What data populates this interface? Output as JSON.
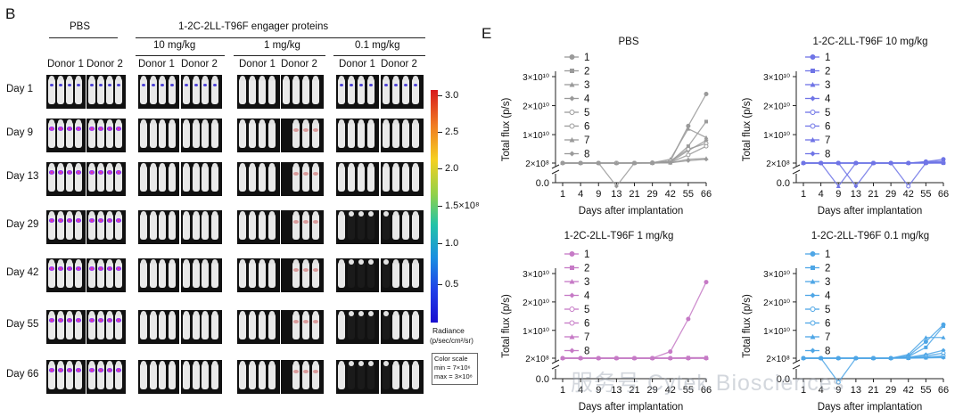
{
  "panel_b": {
    "letter": "B",
    "pbs_label": "PBS",
    "engager_label": "1-2C-2LL-T96F engager proteins",
    "dose_labels": [
      "10 mg/kg",
      "1 mg/kg",
      "0.1 mg/kg"
    ],
    "donor_labels": [
      "Donor 1",
      "Donor 2",
      "Donor 1",
      "Donor 2",
      "Donor 1",
      "Donor 2",
      "Donor 1",
      "Donor 2"
    ],
    "days": [
      "Day 1",
      "Day 9",
      "Day 13",
      "Day 29",
      "Day 42",
      "Day 55",
      "Day 66"
    ],
    "colorbar": {
      "ticks": [
        "3.0",
        "2.5",
        "2.0",
        "1.5×10⁸",
        "1.0",
        "0.5"
      ],
      "title_line1": "Radiance",
      "title_line2": "(p/sec/cm²/sr)",
      "scale_line1": "Color scale",
      "scale_line2": "min = 7×10⁶",
      "scale_line3": "max = 3×10⁸"
    }
  },
  "panel_e": {
    "letter": "E",
    "ylabel": "Total flux (p/s)",
    "xlabel": "Days after implantation",
    "x_ticks": [
      "1",
      "4",
      "9",
      "13",
      "21",
      "29",
      "42",
      "55",
      "66"
    ],
    "y_ticks": [
      "0.0",
      "2×10⁸",
      "1×10¹⁰",
      "2×10¹⁰",
      "3×10¹⁰"
    ],
    "legend": [
      "1",
      "2",
      "3",
      "4",
      "5",
      "6",
      "7",
      "8"
    ]
  },
  "chart_data": [
    {
      "type": "line",
      "title": "PBS",
      "color": "#9a9a9a",
      "xlabel": "Days after implantation",
      "ylabel": "Total flux (p/s)",
      "x": [
        1,
        4,
        9,
        13,
        21,
        29,
        42,
        55,
        66
      ],
      "ylim": [
        0,
        30000000000
      ],
      "series": [
        {
          "name": "1",
          "values": [
            200000000,
            200000000,
            200000000,
            200000000,
            200000000,
            300000000,
            800000000,
            13000000000,
            24000000000
          ]
        },
        {
          "name": "2",
          "values": [
            200000000,
            200000000,
            200000000,
            200000000,
            200000000,
            250000000,
            600000000,
            6000000000,
            14500000000
          ]
        },
        {
          "name": "3",
          "values": [
            200000000,
            200000000,
            200000000,
            200000000,
            250000000,
            300000000,
            1500000000,
            12000000000,
            9000000000
          ]
        },
        {
          "name": "4",
          "values": [
            200000000,
            200000000,
            200000000,
            200000000,
            200000000,
            200000000,
            500000000,
            4500000000,
            8000000000
          ]
        },
        {
          "name": "5",
          "values": [
            200000000,
            200000000,
            200000000,
            200000000,
            200000000,
            300000000,
            900000000,
            5000000000,
            7000000000
          ]
        },
        {
          "name": "6",
          "values": [
            200000000,
            200000000,
            200000000,
            200000000,
            200000000,
            200000000,
            400000000,
            3000000000,
            6000000000
          ]
        },
        {
          "name": "7",
          "values": [
            200000000,
            200000000,
            200000000,
            200000000,
            200000000,
            200000000,
            300000000,
            1500000000,
            1800000000
          ]
        },
        {
          "name": "8",
          "values": [
            200000000,
            200000000,
            200000000,
            100000000,
            200000000,
            200000000,
            300000000,
            1000000000,
            1500000000
          ]
        }
      ]
    },
    {
      "type": "line",
      "title": "1-2C-2LL-T96F 10 mg/kg",
      "color": "#6f74e6",
      "xlabel": "Days after implantation",
      "ylabel": "Total flux (p/s)",
      "x": [
        1,
        4,
        9,
        13,
        21,
        29,
        42,
        55,
        66
      ],
      "ylim": [
        0,
        30000000000
      ],
      "series": [
        {
          "name": "1",
          "values": [
            200000000,
            200000000,
            200000000,
            200000000,
            200000000,
            200000000,
            200000000,
            700000000,
            1500000000
          ]
        },
        {
          "name": "2",
          "values": [
            200000000,
            200000000,
            200000000,
            200000000,
            200000000,
            200000000,
            200000000,
            600000000,
            900000000
          ]
        },
        {
          "name": "3",
          "values": [
            200000000,
            200000000,
            100000000,
            200000000,
            200000000,
            200000000,
            200000000,
            400000000,
            600000000
          ]
        },
        {
          "name": "4",
          "values": [
            200000000,
            200000000,
            200000000,
            100000000,
            200000000,
            200000000,
            200000000,
            300000000,
            400000000
          ]
        },
        {
          "name": "5",
          "values": [
            200000000,
            200000000,
            200000000,
            200000000,
            200000000,
            200000000,
            100000000,
            200000000,
            300000000
          ]
        },
        {
          "name": "6",
          "values": [
            200000000,
            200000000,
            200000000,
            200000000,
            200000000,
            200000000,
            200000000,
            200000000,
            300000000
          ]
        },
        {
          "name": "7",
          "values": [
            200000000,
            200000000,
            200000000,
            200000000,
            200000000,
            200000000,
            200000000,
            200000000,
            200000000
          ]
        },
        {
          "name": "8",
          "values": [
            200000000,
            200000000,
            200000000,
            200000000,
            200000000,
            200000000,
            200000000,
            200000000,
            200000000
          ]
        }
      ]
    },
    {
      "type": "line",
      "title": "1-2C-2LL-T96F 1 mg/kg",
      "color": "#c67ac6",
      "xlabel": "Days after implantation",
      "ylabel": "Total flux (p/s)",
      "x": [
        1,
        4,
        9,
        13,
        21,
        29,
        42,
        55,
        66
      ],
      "ylim": [
        0,
        30000000000
      ],
      "series": [
        {
          "name": "1",
          "values": [
            200000000,
            200000000,
            200000000,
            200000000,
            200000000,
            200000000,
            2500000000,
            14000000000,
            27000000000
          ]
        },
        {
          "name": "2",
          "values": [
            200000000,
            200000000,
            200000000,
            200000000,
            200000000,
            200000000,
            200000000,
            400000000,
            400000000
          ]
        },
        {
          "name": "3",
          "values": [
            200000000,
            200000000,
            200000000,
            200000000,
            200000000,
            200000000,
            200000000,
            300000000,
            300000000
          ]
        },
        {
          "name": "4",
          "values": [
            200000000,
            200000000,
            200000000,
            200000000,
            200000000,
            200000000,
            200000000,
            200000000,
            300000000
          ]
        },
        {
          "name": "5",
          "values": [
            200000000,
            200000000,
            200000000,
            200000000,
            200000000,
            200000000,
            200000000,
            200000000,
            200000000
          ]
        },
        {
          "name": "6",
          "values": [
            200000000,
            200000000,
            200000000,
            200000000,
            200000000,
            200000000,
            200000000,
            200000000,
            200000000
          ]
        },
        {
          "name": "7",
          "values": [
            200000000,
            200000000,
            200000000,
            200000000,
            200000000,
            200000000,
            200000000,
            200000000,
            200000000
          ]
        },
        {
          "name": "8",
          "values": [
            200000000,
            200000000,
            200000000,
            200000000,
            200000000,
            200000000,
            200000000,
            200000000,
            200000000
          ]
        }
      ]
    },
    {
      "type": "line",
      "title": "1-2C-2LL-T96F 0.1 mg/kg",
      "color": "#4ea6e6",
      "xlabel": "Days after implantation",
      "ylabel": "Total flux (p/s)",
      "x": [
        1,
        4,
        9,
        13,
        21,
        29,
        42,
        55,
        66
      ],
      "ylim": [
        0,
        30000000000
      ],
      "series": [
        {
          "name": "1",
          "values": [
            200000000,
            200000000,
            200000000,
            200000000,
            200000000,
            200000000,
            1000000000,
            6000000000,
            12000000000
          ]
        },
        {
          "name": "2",
          "values": [
            200000000,
            200000000,
            200000000,
            200000000,
            200000000,
            200000000,
            800000000,
            4000000000,
            11500000000
          ]
        },
        {
          "name": "3",
          "values": [
            200000000,
            200000000,
            200000000,
            200000000,
            200000000,
            200000000,
            1500000000,
            7500000000,
            7500000000
          ]
        },
        {
          "name": "4",
          "values": [
            200000000,
            200000000,
            200000000,
            200000000,
            200000000,
            200000000,
            500000000,
            1500000000,
            3000000000
          ]
        },
        {
          "name": "5",
          "values": [
            200000000,
            200000000,
            200000000,
            200000000,
            200000000,
            200000000,
            400000000,
            1000000000,
            2000000000
          ]
        },
        {
          "name": "6",
          "values": [
            200000000,
            200000000,
            100000000,
            200000000,
            200000000,
            200000000,
            300000000,
            600000000,
            1000000000
          ]
        },
        {
          "name": "7",
          "values": [
            200000000,
            200000000,
            200000000,
            200000000,
            200000000,
            200000000,
            200000000,
            400000000,
            600000000
          ]
        },
        {
          "name": "8",
          "values": [
            200000000,
            200000000,
            200000000,
            200000000,
            200000000,
            200000000,
            200000000,
            300000000,
            400000000
          ]
        }
      ]
    }
  ],
  "watermark": "服务号  Cytek Biosciences"
}
